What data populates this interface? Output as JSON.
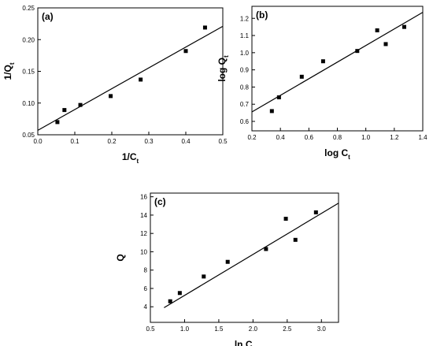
{
  "chart_data": [
    {
      "type": "scatter",
      "panel_label": "(a)",
      "xlabel": "1/C",
      "xlabel_sub": "t",
      "ylabel": "1/Q",
      "ylabel_sub": "t",
      "x": [
        0.053,
        0.072,
        0.115,
        0.197,
        0.278,
        0.4,
        0.452
      ],
      "y": [
        0.07,
        0.089,
        0.097,
        0.111,
        0.137,
        0.182,
        0.219
      ],
      "fit": {
        "x": [
          0.0,
          0.5
        ],
        "y": [
          0.057,
          0.221
        ]
      },
      "color": "#000000",
      "xlim": [
        0.0,
        0.5
      ],
      "ylim": [
        0.05,
        0.25
      ],
      "xticks": [
        {
          "value": 0.0,
          "label": "0.0"
        },
        0.1,
        0.2,
        0.3,
        0.4,
        0.5
      ],
      "yticks": [
        0.05,
        {
          "value": 0.1,
          "label": "0.10"
        },
        0.15,
        {
          "value": 0.2,
          "label": "0.20"
        },
        0.25
      ]
    },
    {
      "type": "scatter",
      "panel_label": "(b)",
      "xlabel": "log C",
      "xlabel_sub": "t",
      "ylabel": "log Q",
      "ylabel_sub": "t",
      "x": [
        0.34,
        0.39,
        0.55,
        0.7,
        0.94,
        1.08,
        1.14,
        1.27
      ],
      "y": [
        0.66,
        0.74,
        0.86,
        0.95,
        1.01,
        1.13,
        1.05,
        1.15
      ],
      "fit": {
        "x": [
          0.2,
          1.4
        ],
        "y": [
          0.655,
          1.235
        ]
      },
      "color": "#000000",
      "xlim": [
        0.2,
        1.4
      ],
      "ylim": [
        0.545,
        1.27
      ],
      "xticks": [
        0.2,
        0.4,
        0.6,
        0.8,
        {
          "value": 1.0,
          "label": "1.0"
        },
        1.2,
        1.4
      ],
      "yticks": [
        0.6,
        0.7,
        0.8,
        0.9,
        {
          "value": 1.0,
          "label": "1.0"
        },
        1.1,
        1.2
      ]
    },
    {
      "type": "scatter",
      "panel_label": "(c)",
      "xlabel": "ln C",
      "xlabel_sub": "t",
      "ylabel": "Q",
      "x": [
        0.79,
        0.93,
        1.28,
        1.63,
        2.19,
        2.48,
        2.62,
        2.92
      ],
      "y": [
        4.6,
        5.5,
        7.3,
        8.9,
        10.3,
        13.6,
        11.3,
        14.3
      ],
      "fit": {
        "x": [
          0.7,
          3.25
        ],
        "y": [
          3.9,
          15.3
        ]
      },
      "color": "#000000",
      "xlim": [
        0.5,
        3.25
      ],
      "ylim": [
        2.3,
        16.4
      ],
      "xticks": [
        0.5,
        {
          "value": 1.0,
          "label": "1.0"
        },
        1.5,
        {
          "value": 2.0,
          "label": "2.0"
        },
        2.5,
        {
          "value": 3.0,
          "label": "3.0"
        }
      ],
      "yticks": [
        4,
        6,
        8,
        10,
        12,
        14,
        16
      ]
    }
  ]
}
